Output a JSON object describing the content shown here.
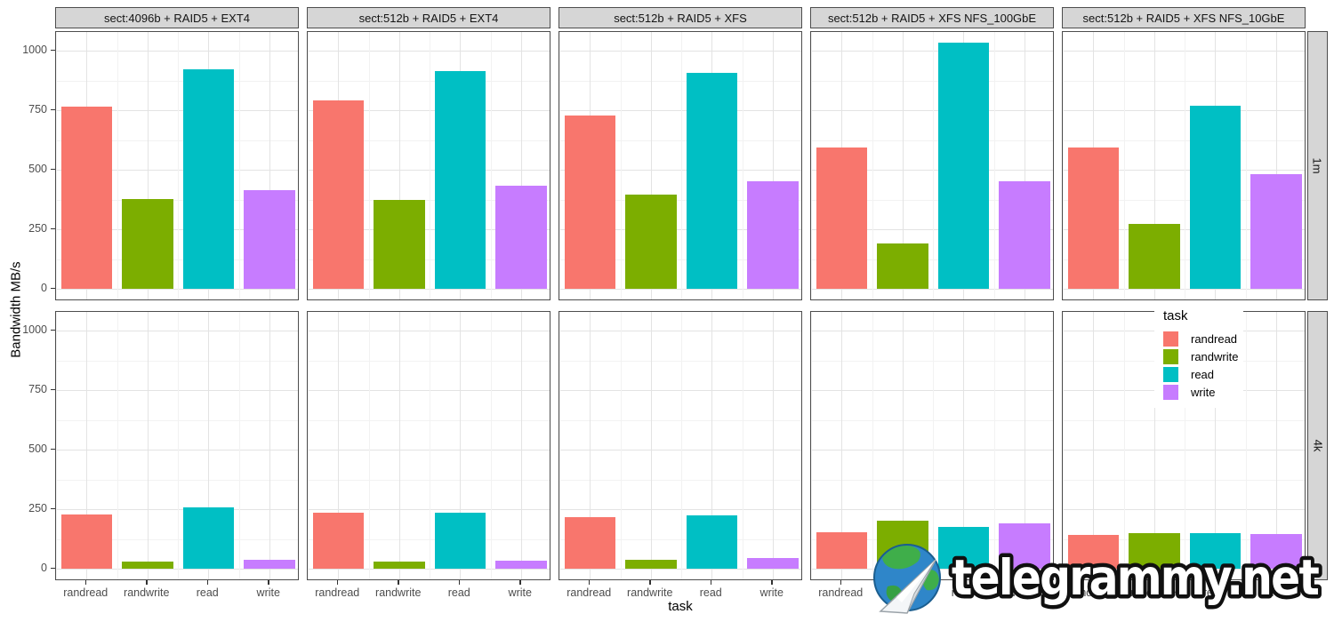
{
  "y_axis": {
    "title": "Bandwidth MB/s",
    "tick_labels": [
      "0",
      "250",
      "500",
      "750",
      "1000"
    ]
  },
  "x_axis": {
    "title": "task",
    "categories": [
      "randread",
      "randwrite",
      "read",
      "write"
    ]
  },
  "legend": {
    "title": "task",
    "items": [
      {
        "label": "randread",
        "color": "#F8766D"
      },
      {
        "label": "randwrite",
        "color": "#7CAE00"
      },
      {
        "label": "read",
        "color": "#00BFC4"
      },
      {
        "label": "write",
        "color": "#C77CFF"
      }
    ]
  },
  "facets": {
    "columns": [
      "sect:4096b + RAID5 + EXT4",
      "sect:512b + RAID5 + EXT4",
      "sect:512b + RAID5 + XFS",
      "sect:512b + RAID5 + XFS NFS_100GbE",
      "sect:512b + RAID5 + XFS NFS_10GbE"
    ],
    "rows": [
      "1m",
      "4k"
    ]
  },
  "watermark": {
    "text": "telegrammy.net",
    "logo": "globe-paper-plane-icon"
  },
  "colors": {
    "randread": "#F8766D",
    "randwrite": "#7CAE00",
    "read": "#00BFC4",
    "write": "#C77CFF",
    "strip_bg": "#d6d6d6",
    "grid_major": "#e3e3e3",
    "grid_minor": "#f2f2f2"
  },
  "chart_data": {
    "type": "bar",
    "title": "",
    "xlabel": "task",
    "ylabel": "Bandwidth MB/s",
    "categories": [
      "randread",
      "randwrite",
      "read",
      "write"
    ],
    "col_facets": [
      "sect:4096b + RAID5 + EXT4",
      "sect:512b + RAID5 + EXT4",
      "sect:512b + RAID5 + XFS",
      "sect:512b + RAID5 + XFS NFS_100GbE",
      "sect:512b + RAID5 + XFS NFS_10GbE"
    ],
    "row_facets": [
      "1m",
      "4k"
    ],
    "ylim": [
      0,
      1050
    ],
    "y_ticks": [
      0,
      250,
      500,
      750,
      1000
    ],
    "y_minor_ticks": [
      125,
      375,
      625,
      875
    ],
    "grid": "major+minor",
    "legend_position": "inside-right",
    "series": [
      {
        "name": "randread",
        "color": "#F8766D"
      },
      {
        "name": "randwrite",
        "color": "#7CAE00"
      },
      {
        "name": "read",
        "color": "#00BFC4"
      },
      {
        "name": "write",
        "color": "#C77CFF"
      }
    ],
    "panels": [
      {
        "row": "1m",
        "col": "sect:4096b + RAID5 + EXT4",
        "values": [
          765,
          378,
          922,
          415
        ]
      },
      {
        "row": "1m",
        "col": "sect:512b + RAID5 + EXT4",
        "values": [
          790,
          374,
          913,
          433
        ]
      },
      {
        "row": "1m",
        "col": "sect:512b + RAID5 + XFS",
        "values": [
          726,
          395,
          906,
          450
        ]
      },
      {
        "row": "1m",
        "col": "sect:512b + RAID5 + XFS NFS_100GbE",
        "values": [
          594,
          190,
          1032,
          450
        ]
      },
      {
        "row": "1m",
        "col": "sect:512b + RAID5 + XFS NFS_10GbE",
        "values": [
          594,
          272,
          769,
          480
        ]
      },
      {
        "row": "4k",
        "col": "sect:4096b + RAID5 + EXT4",
        "values": [
          226,
          31,
          256,
          37
        ]
      },
      {
        "row": "4k",
        "col": "sect:512b + RAID5 + EXT4",
        "values": [
          234,
          30,
          234,
          33
        ]
      },
      {
        "row": "4k",
        "col": "sect:512b + RAID5 + XFS",
        "values": [
          216,
          36,
          224,
          45
        ]
      },
      {
        "row": "4k",
        "col": "sect:512b + RAID5 + XFS NFS_100GbE",
        "values": [
          153,
          203,
          176,
          191
        ]
      },
      {
        "row": "4k",
        "col": "sect:512b + RAID5 + XFS NFS_10GbE",
        "values": [
          141,
          150,
          150,
          146
        ]
      }
    ]
  }
}
